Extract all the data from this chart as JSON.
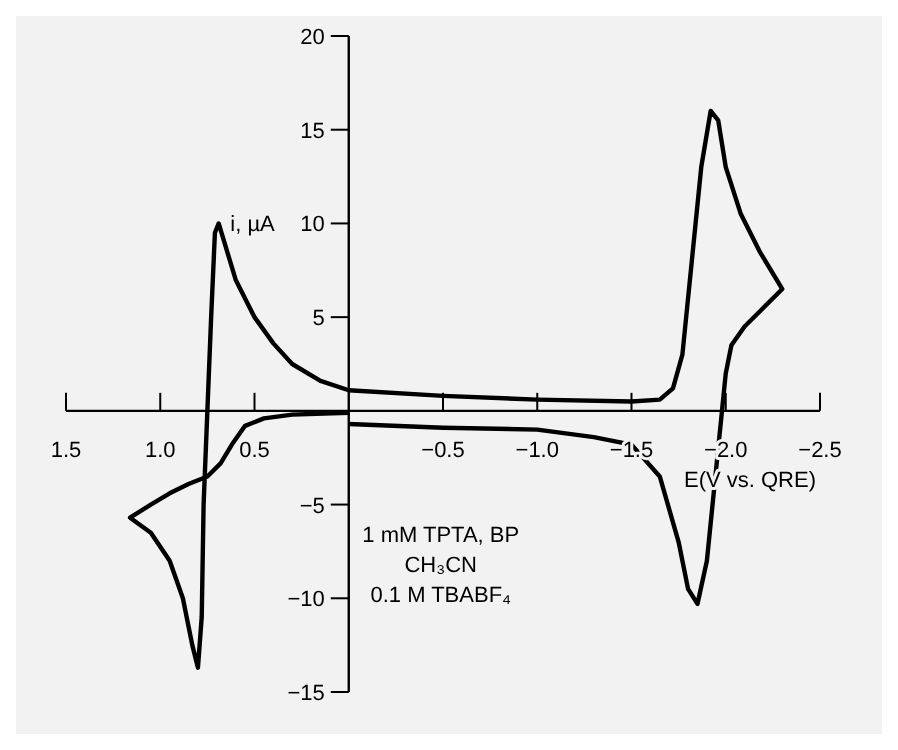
{
  "chart_data": {
    "type": "line",
    "xlabel": "E(V vs. QRE)",
    "ylabel": "i, µA",
    "annotations": [
      "1 mM TPTA, BP",
      "CH₃CN",
      "0.1 M TBABF₄"
    ],
    "xlim": [
      1.5,
      -2.5
    ],
    "ylim": [
      -15,
      20
    ],
    "xticks": [
      1.5,
      {
        "value": 1.0,
        "label": "1.0"
      },
      0.5,
      {
        "value": -0.5,
        "label": "−0.5"
      },
      {
        "value": -1.0,
        "label": "−1.0"
      },
      {
        "value": -1.5,
        "label": "−1.5"
      },
      {
        "value": -2.0,
        "label": "−2.0"
      },
      {
        "value": -2.5,
        "label": "−2.5"
      }
    ],
    "yticks": [
      {
        "value": -15,
        "label": "−15"
      },
      {
        "value": -10,
        "label": "−10"
      },
      {
        "value": -5,
        "label": "−5"
      },
      5,
      10,
      15,
      20
    ],
    "series": [
      {
        "color": "#000000",
        "x": [
          0,
          0.3,
          0.45,
          0.55,
          0.62,
          0.68,
          0.75,
          0.85,
          0.95,
          1.05,
          1.16,
          1.05,
          0.95,
          0.88,
          0.83,
          0.8,
          0.78,
          0.77,
          0.75,
          0.73,
          0.71,
          0.69,
          0.66,
          0.6,
          0.5,
          0.4,
          0.3,
          0.15,
          0,
          -0.5,
          -1.0,
          -1.5,
          -1.65,
          -1.72,
          -1.77,
          -1.82,
          -1.87,
          -1.92,
          -1.96,
          -2.0,
          -2.08,
          -2.18,
          -2.3,
          -2.2,
          -2.1,
          -2.03,
          -2.0,
          -1.98,
          -1.95,
          -1.9,
          -1.85,
          -1.8,
          -1.75,
          -1.65,
          -1.5,
          -1.3,
          -1.0,
          -0.5,
          0
        ],
        "values": [
          -0.1,
          -0.2,
          -0.4,
          -0.8,
          -1.8,
          -2.8,
          -3.5,
          -3.9,
          -4.4,
          -5.0,
          -5.7,
          -6.5,
          -8,
          -10,
          -12.5,
          -13.7,
          -11,
          -5,
          0,
          5,
          9.5,
          10,
          9,
          7,
          5,
          3.6,
          2.5,
          1.6,
          1.1,
          0.8,
          0.6,
          0.5,
          0.6,
          1.2,
          3,
          8,
          13,
          16,
          15.5,
          13,
          10.5,
          8.5,
          6.5,
          5.5,
          4.5,
          3.5,
          2,
          0,
          -3,
          -8,
          -10.3,
          -9.5,
          -7,
          -3.5,
          -1.8,
          -1.4,
          -1.0,
          -0.9,
          -0.7
        ]
      }
    ]
  }
}
